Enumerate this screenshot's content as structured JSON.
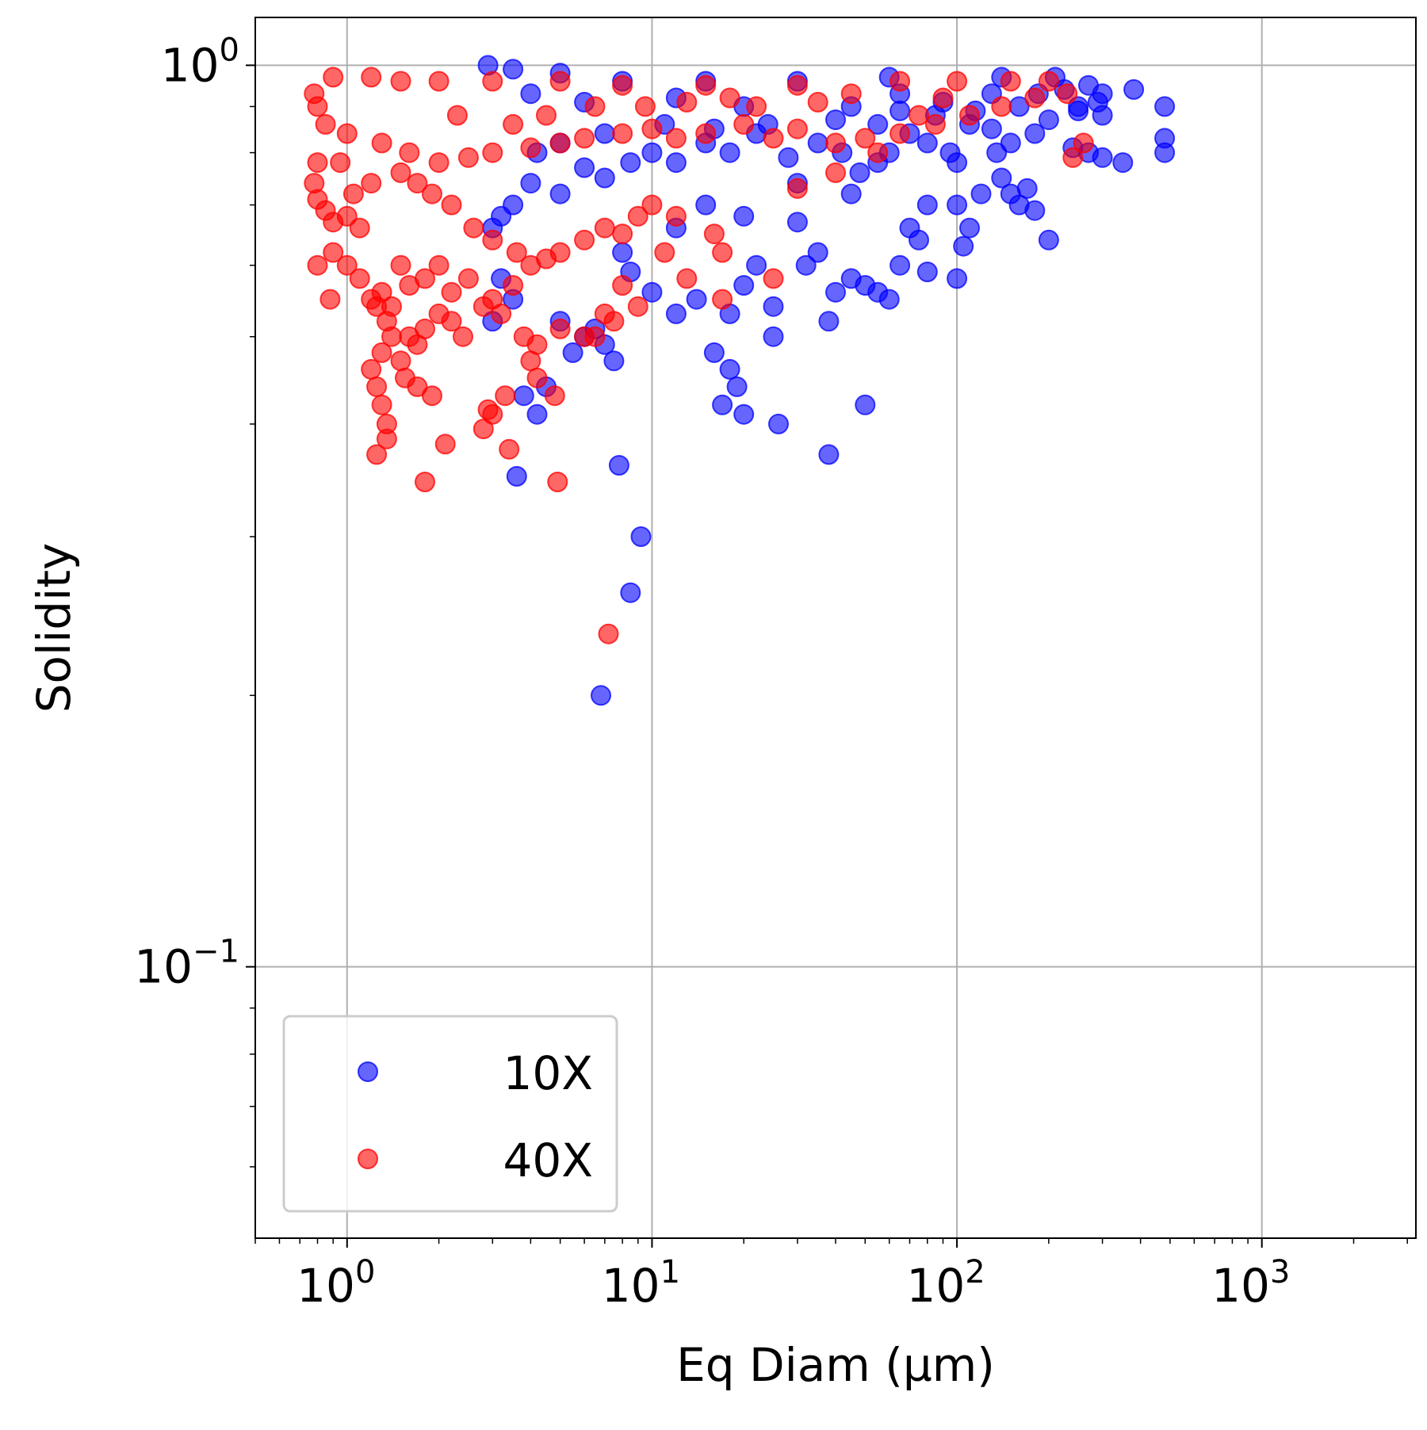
{
  "chart_data": {
    "type": "scatter",
    "title": "",
    "xlabel": "Eq Diam (µm)",
    "ylabel": "Solidity",
    "xscale": "log",
    "yscale": "log",
    "xlim": [
      0.5,
      3200
    ],
    "ylim": [
      0.05,
      1.13
    ],
    "grid": true,
    "legend": {
      "position": "lower-left"
    },
    "x_ticks": [
      {
        "base": "10",
        "exp": "0",
        "value": 1
      },
      {
        "base": "10",
        "exp": "1",
        "value": 10
      },
      {
        "base": "10",
        "exp": "2",
        "value": 100
      },
      {
        "base": "10",
        "exp": "3",
        "value": 1000
      }
    ],
    "y_ticks": [
      {
        "base": "10",
        "exp": "0",
        "value": 1
      },
      {
        "base": "10",
        "exp": "−1",
        "value": 0.1
      }
    ],
    "series": [
      {
        "name": "10X",
        "color": "#0000ff",
        "points": [
          [
            2.9,
            1.0
          ],
          [
            3.5,
            0.99
          ],
          [
            5.0,
            0.98
          ],
          [
            8.0,
            0.96
          ],
          [
            15,
            0.96
          ],
          [
            30,
            0.96
          ],
          [
            60,
            0.97
          ],
          [
            140,
            0.97
          ],
          [
            210,
            0.97
          ],
          [
            270,
            0.95
          ],
          [
            300,
            0.93
          ],
          [
            380,
            0.94
          ],
          [
            480,
            0.9
          ],
          [
            480,
            0.83
          ],
          [
            480,
            0.8
          ],
          [
            350,
            0.78
          ],
          [
            300,
            0.79
          ],
          [
            270,
            0.8
          ],
          [
            240,
            0.81
          ],
          [
            300,
            0.88
          ],
          [
            290,
            0.91
          ],
          [
            250,
            0.89
          ],
          [
            200,
            0.87
          ],
          [
            180,
            0.84
          ],
          [
            150,
            0.82
          ],
          [
            130,
            0.85
          ],
          [
            110,
            0.86
          ],
          [
            95,
            0.8
          ],
          [
            80,
            0.82
          ],
          [
            70,
            0.84
          ],
          [
            60,
            0.8
          ],
          [
            55,
            0.78
          ],
          [
            48,
            0.76
          ],
          [
            42,
            0.8
          ],
          [
            35,
            0.82
          ],
          [
            28,
            0.79
          ],
          [
            22,
            0.84
          ],
          [
            18,
            0.8
          ],
          [
            15,
            0.82
          ],
          [
            12,
            0.78
          ],
          [
            10,
            0.8
          ],
          [
            8.5,
            0.78
          ],
          [
            7.0,
            0.75
          ],
          [
            6.0,
            0.77
          ],
          [
            5.0,
            0.72
          ],
          [
            4.0,
            0.74
          ],
          [
            3.5,
            0.7
          ],
          [
            3.2,
            0.68
          ],
          [
            3.0,
            0.66
          ],
          [
            140,
            0.75
          ],
          [
            150,
            0.72
          ],
          [
            160,
            0.7
          ],
          [
            180,
            0.69
          ],
          [
            200,
            0.64
          ],
          [
            170,
            0.73
          ],
          [
            120,
            0.72
          ],
          [
            110,
            0.66
          ],
          [
            105,
            0.63
          ],
          [
            100,
            0.58
          ],
          [
            80,
            0.59
          ],
          [
            75,
            0.64
          ],
          [
            70,
            0.66
          ],
          [
            65,
            0.6
          ],
          [
            60,
            0.55
          ],
          [
            55,
            0.56
          ],
          [
            50,
            0.57
          ],
          [
            45,
            0.58
          ],
          [
            40,
            0.56
          ],
          [
            38,
            0.52
          ],
          [
            35,
            0.62
          ],
          [
            32,
            0.6
          ],
          [
            30,
            0.67
          ],
          [
            25,
            0.54
          ],
          [
            25,
            0.5
          ],
          [
            22,
            0.6
          ],
          [
            20,
            0.57
          ],
          [
            18,
            0.53
          ],
          [
            16,
            0.48
          ],
          [
            14,
            0.55
          ],
          [
            12,
            0.53
          ],
          [
            10,
            0.56
          ],
          [
            8.5,
            0.59
          ],
          [
            8.0,
            0.62
          ],
          [
            7.5,
            0.47
          ],
          [
            7.0,
            0.49
          ],
          [
            6.5,
            0.51
          ],
          [
            6.0,
            0.5
          ],
          [
            5.5,
            0.48
          ],
          [
            5.0,
            0.52
          ],
          [
            4.5,
            0.44
          ],
          [
            4.2,
            0.41
          ],
          [
            3.8,
            0.43
          ],
          [
            3.5,
            0.55
          ],
          [
            3.2,
            0.58
          ],
          [
            3.0,
            0.52
          ],
          [
            18,
            0.46
          ],
          [
            19,
            0.44
          ],
          [
            20,
            0.41
          ],
          [
            17,
            0.42
          ],
          [
            26,
            0.4
          ],
          [
            50,
            0.42
          ],
          [
            38,
            0.37
          ],
          [
            7.8,
            0.36
          ],
          [
            3.6,
            0.35
          ],
          [
            9.2,
            0.3
          ],
          [
            8.5,
            0.26
          ],
          [
            6.8,
            0.2
          ],
          [
            130,
            0.93
          ],
          [
            90,
            0.91
          ],
          [
            250,
            0.9
          ],
          [
            65,
            0.89
          ],
          [
            45,
            0.9
          ],
          [
            20,
            0.9
          ],
          [
            12,
            0.92
          ],
          [
            6,
            0.91
          ],
          [
            4,
            0.93
          ],
          [
            100,
            0.78
          ],
          [
            135,
            0.8
          ],
          [
            160,
            0.9
          ],
          [
            115,
            0.89
          ],
          [
            85,
            0.88
          ],
          [
            55,
            0.86
          ],
          [
            40,
            0.87
          ],
          [
            24,
            0.86
          ],
          [
            16,
            0.85
          ],
          [
            11,
            0.86
          ],
          [
            7,
            0.84
          ],
          [
            5,
            0.82
          ],
          [
            4.2,
            0.8
          ],
          [
            185,
            0.93
          ],
          [
            225,
            0.94
          ],
          [
            65,
            0.93
          ],
          [
            30,
            0.74
          ],
          [
            45,
            0.72
          ],
          [
            80,
            0.7
          ],
          [
            100,
            0.7
          ],
          [
            15,
            0.7
          ],
          [
            20,
            0.68
          ],
          [
            12,
            0.66
          ]
        ]
      },
      {
        "name": "40X",
        "color": "#ff0000",
        "points": [
          [
            0.9,
            0.97
          ],
          [
            1.2,
            0.97
          ],
          [
            1.5,
            0.96
          ],
          [
            2.0,
            0.96
          ],
          [
            3.0,
            0.96
          ],
          [
            5.0,
            0.96
          ],
          [
            8.0,
            0.95
          ],
          [
            15,
            0.95
          ],
          [
            30,
            0.95
          ],
          [
            65,
            0.96
          ],
          [
            100,
            0.96
          ],
          [
            150,
            0.96
          ],
          [
            200,
            0.96
          ],
          [
            260,
            0.82
          ],
          [
            240,
            0.79
          ],
          [
            180,
            0.92
          ],
          [
            140,
            0.9
          ],
          [
            110,
            0.88
          ],
          [
            85,
            0.86
          ],
          [
            65,
            0.84
          ],
          [
            50,
            0.83
          ],
          [
            40,
            0.82
          ],
          [
            30,
            0.85
          ],
          [
            25,
            0.83
          ],
          [
            20,
            0.86
          ],
          [
            15,
            0.84
          ],
          [
            12,
            0.83
          ],
          [
            10,
            0.85
          ],
          [
            8.0,
            0.84
          ],
          [
            6.0,
            0.83
          ],
          [
            5.0,
            0.82
          ],
          [
            4.0,
            0.81
          ],
          [
            3.0,
            0.8
          ],
          [
            2.5,
            0.79
          ],
          [
            2.0,
            0.78
          ],
          [
            1.6,
            0.8
          ],
          [
            1.3,
            0.82
          ],
          [
            1.0,
            0.84
          ],
          [
            0.85,
            0.86
          ],
          [
            0.8,
            0.9
          ],
          [
            0.78,
            0.93
          ],
          [
            0.8,
            0.78
          ],
          [
            0.78,
            0.74
          ],
          [
            0.8,
            0.71
          ],
          [
            0.85,
            0.69
          ],
          [
            0.9,
            0.67
          ],
          [
            1.0,
            0.68
          ],
          [
            1.1,
            0.66
          ],
          [
            0.9,
            0.62
          ],
          [
            0.8,
            0.6
          ],
          [
            1.0,
            0.6
          ],
          [
            1.1,
            0.58
          ],
          [
            0.88,
            0.55
          ],
          [
            1.2,
            0.55
          ],
          [
            1.3,
            0.56
          ],
          [
            1.4,
            0.54
          ],
          [
            1.5,
            0.6
          ],
          [
            1.6,
            0.57
          ],
          [
            1.8,
            0.58
          ],
          [
            2.0,
            0.6
          ],
          [
            2.2,
            0.56
          ],
          [
            2.5,
            0.58
          ],
          [
            3.0,
            0.55
          ],
          [
            3.5,
            0.57
          ],
          [
            4.0,
            0.6
          ],
          [
            4.5,
            0.61
          ],
          [
            5.0,
            0.62
          ],
          [
            6.0,
            0.64
          ],
          [
            7.0,
            0.66
          ],
          [
            8.0,
            0.65
          ],
          [
            9.0,
            0.68
          ],
          [
            10,
            0.7
          ],
          [
            12,
            0.68
          ],
          [
            16,
            0.65
          ],
          [
            17,
            0.62
          ],
          [
            11,
            0.62
          ],
          [
            13,
            0.58
          ],
          [
            17,
            0.55
          ],
          [
            1.25,
            0.54
          ],
          [
            1.35,
            0.52
          ],
          [
            1.4,
            0.5
          ],
          [
            1.3,
            0.48
          ],
          [
            1.5,
            0.47
          ],
          [
            1.6,
            0.5
          ],
          [
            1.7,
            0.49
          ],
          [
            1.8,
            0.51
          ],
          [
            2.0,
            0.53
          ],
          [
            2.2,
            0.52
          ],
          [
            2.4,
            0.5
          ],
          [
            2.8,
            0.54
          ],
          [
            3.2,
            0.53
          ],
          [
            3.8,
            0.5
          ],
          [
            4.2,
            0.49
          ],
          [
            5.0,
            0.51
          ],
          [
            6.0,
            0.5
          ],
          [
            7.0,
            0.53
          ],
          [
            7.5,
            0.52
          ],
          [
            8.0,
            0.57
          ],
          [
            9.0,
            0.54
          ],
          [
            1.2,
            0.46
          ],
          [
            1.25,
            0.44
          ],
          [
            1.3,
            0.42
          ],
          [
            1.35,
            0.4
          ],
          [
            1.35,
            0.385
          ],
          [
            1.25,
            0.37
          ],
          [
            1.55,
            0.45
          ],
          [
            1.7,
            0.44
          ],
          [
            1.9,
            0.43
          ],
          [
            2.1,
            0.38
          ],
          [
            2.8,
            0.395
          ],
          [
            3.0,
            0.41
          ],
          [
            2.9,
            0.415
          ],
          [
            3.4,
            0.375
          ],
          [
            3.3,
            0.43
          ],
          [
            4.2,
            0.45
          ],
          [
            4.8,
            0.43
          ],
          [
            1.8,
            0.345
          ],
          [
            4.9,
            0.345
          ],
          [
            7.2,
            0.234
          ],
          [
            6.5,
            0.5
          ],
          [
            4.0,
            0.47
          ],
          [
            3.6,
            0.62
          ],
          [
            3.0,
            0.64
          ],
          [
            2.6,
            0.66
          ],
          [
            2.2,
            0.7
          ],
          [
            1.9,
            0.72
          ],
          [
            1.7,
            0.74
          ],
          [
            1.5,
            0.76
          ],
          [
            1.2,
            0.74
          ],
          [
            1.05,
            0.72
          ],
          [
            0.95,
            0.78
          ],
          [
            25,
            0.58
          ],
          [
            30,
            0.73
          ],
          [
            40,
            0.76
          ],
          [
            55,
            0.8
          ],
          [
            75,
            0.88
          ],
          [
            90,
            0.92
          ],
          [
            230,
            0.93
          ],
          [
            2.3,
            0.88
          ],
          [
            3.5,
            0.86
          ],
          [
            4.5,
            0.88
          ],
          [
            6.5,
            0.9
          ],
          [
            9.5,
            0.9
          ],
          [
            13,
            0.91
          ],
          [
            18,
            0.92
          ],
          [
            22,
            0.9
          ],
          [
            35,
            0.91
          ],
          [
            45,
            0.93
          ]
        ]
      }
    ]
  }
}
